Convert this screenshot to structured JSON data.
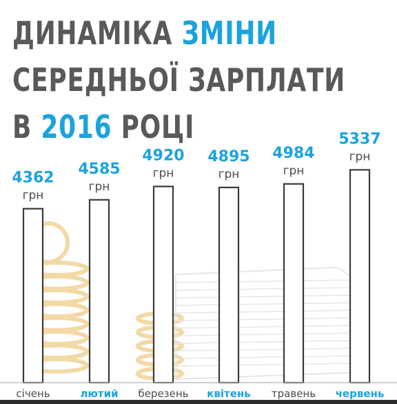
{
  "title": {
    "line1_a": "ДИНАМІКА",
    "line1_b": "ЗМІНИ",
    "line2": "СЕРЕДНЬОЇ ЗАРПЛАТИ",
    "line3_a": "В",
    "line3_b": "2016",
    "line3_c": "РОЦІ"
  },
  "colors": {
    "title_gray": "#58595b",
    "accent_blue": "#1aa3dd",
    "bar_outline": "#3a3a3a",
    "label_gray": "#4a4a4a",
    "coin_decor": "#f3d9a6",
    "money_decor": "#e6e6e6"
  },
  "chart_data": {
    "type": "bar",
    "categories": [
      "січень",
      "лютий",
      "березень",
      "квітень",
      "травень",
      "червень"
    ],
    "values": [
      4362,
      4585,
      4920,
      4895,
      4984,
      5337
    ],
    "value_unit": "грн",
    "highlighted_categories": [
      "лютий",
      "квітень",
      "червень"
    ],
    "grid": false,
    "legend": "none"
  }
}
